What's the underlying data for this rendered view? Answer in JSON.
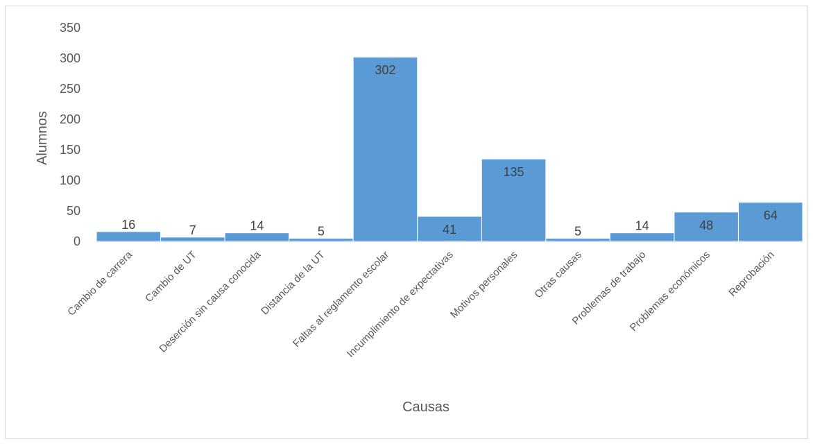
{
  "chart_data": {
    "type": "bar",
    "categories": [
      "Cambio de carrera",
      "Cambio de UT",
      "Deserción sin causa conocida",
      "Distancia de la UT",
      "Faltas al reglamento escolar",
      "Incumplimiento de expectativas",
      "Motivos personales",
      "Otras causas",
      "Problemas de trabajo",
      "Problemas económicos",
      "Reprobación"
    ],
    "values": [
      16,
      7,
      14,
      5,
      302,
      41,
      135,
      5,
      14,
      48,
      64
    ],
    "title": "",
    "xlabel": "Causas",
    "ylabel": "Alumnos",
    "ylim": [
      0,
      350
    ],
    "yticks": [
      0,
      50,
      100,
      150,
      200,
      250,
      300,
      350
    ],
    "grid": false,
    "legend": "none",
    "bar_color": "#5b9bd5",
    "data_labels": true
  }
}
